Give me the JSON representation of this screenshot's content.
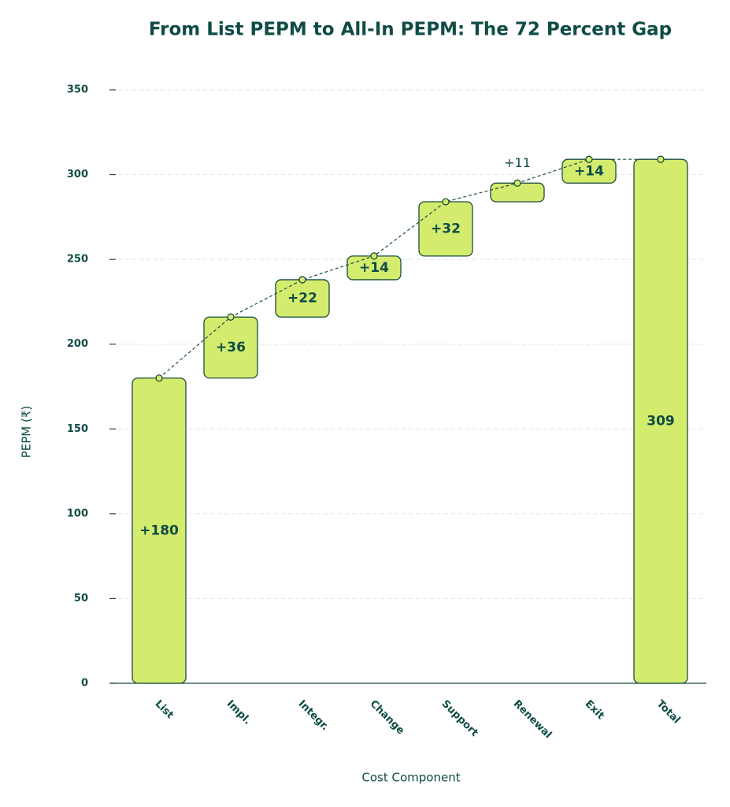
{
  "chart_data": {
    "type": "waterfall",
    "title": "From List PEPM to All-In PEPM: The 72 Percent Gap",
    "x_label": "Cost Component",
    "y_label": "PEPM (₹)",
    "categories": [
      "List",
      "Impl.",
      "Integr.",
      "Change",
      "Support",
      "Renewal",
      "Exit",
      "Total"
    ],
    "values": [
      180,
      36,
      22,
      14,
      32,
      11,
      14,
      309
    ],
    "value_labels": [
      "+180",
      "+36",
      "+22",
      "+14",
      "+32",
      "+11",
      "+14",
      "309"
    ],
    "color": "#d4ec6e",
    "ylim": [
      0,
      350
    ],
    "yticks": [
      0,
      50,
      100,
      150,
      200,
      250,
      300,
      350
    ],
    "grid": true
  }
}
